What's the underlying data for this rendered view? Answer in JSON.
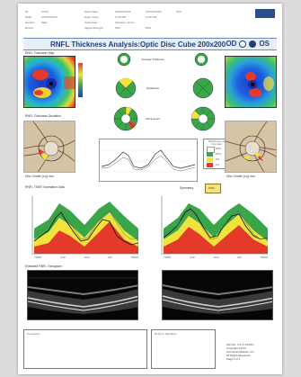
{
  "page": {
    "title": "RNFL Thickness Analysis:Optic Disc Cube 200x200",
    "eyes": {
      "od": "OD",
      "os": "OS"
    }
  },
  "header": {
    "rows": [
      [
        "ID:",
        "XXXX",
        "Exam Date:",
        "XX/XX/XXXX",
        "XX/XX/XXXX",
        "XXX"
      ],
      [
        "DOB:",
        "XX/XX/XXXX",
        "Exam Time:",
        "X:XX PM",
        "X:XX PM",
        ""
      ],
      [
        "Gender:",
        "Male",
        "Technician:",
        "Operator, Cirrus",
        "",
        ""
      ],
      [
        "Doctor:",
        "",
        "Signal Strength:",
        "9/10",
        "8/10",
        ""
      ]
    ]
  },
  "sections": {
    "thickness_map": "RNFL Thickness Map",
    "average_thickness": "Average Thickness",
    "quadrants": "Quadrants",
    "clock_hours": "Clock Hours",
    "deviation_map": "RNFL Thickness Deviation",
    "tsnit": "RNFL TSNIT Normative Data",
    "symmetry": "Symmetry",
    "extracted": "Extracted RNFL Tomogram",
    "od_disc_center": "Disc Center (x,y) mm",
    "os_disc_center": "Disc Center (x,y) mm",
    "distribution": "Distribution of Normals"
  },
  "legend": {
    "items": [
      {
        "label": "99%",
        "color": "#ffffff"
      },
      {
        "label": "95%",
        "color": "#3aa64a"
      },
      {
        "label": "5%",
        "color": "#f2e33a"
      },
      {
        "label": "1%",
        "color": "#e33a2a"
      }
    ]
  },
  "tsnit_axis": [
    "TEMP",
    "SUP",
    "NAS",
    "INF",
    "TEMP"
  ],
  "symmetry_value": "XX%",
  "footer": {
    "comments_label": "Comments",
    "signature_label": "Doctor's Signature",
    "info": [
      "SW Ver: X.X.X.XXXXX",
      "Copyright XXXX",
      "Carl Zeiss Meditec, Inc.",
      "All Rights Reserved",
      "Page 1 of 1"
    ]
  },
  "colors": {
    "accent": "#203e7a",
    "green": "#3aa64a",
    "yellow": "#f2e33a",
    "red": "#e33a2a"
  }
}
